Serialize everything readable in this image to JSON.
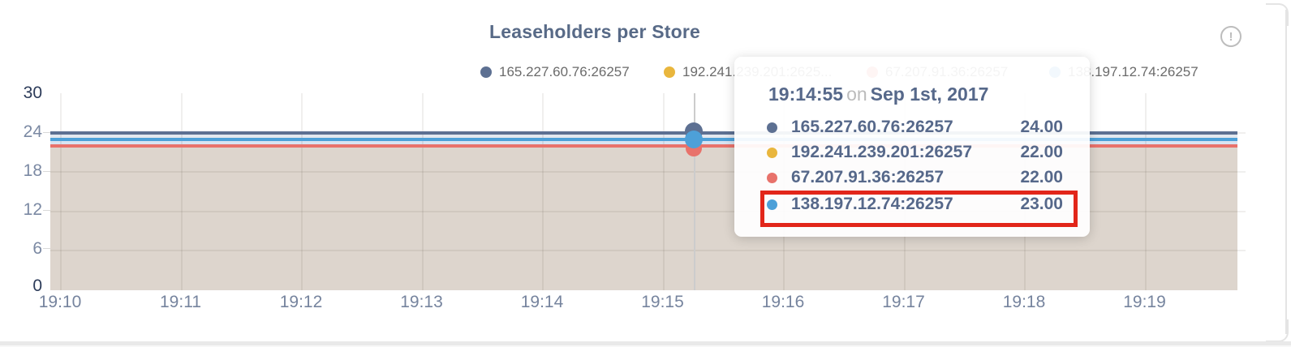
{
  "panel": {
    "title": "Leaseholders per Store",
    "info_icon": "!"
  },
  "colors": {
    "series_slate": "#5d7092",
    "series_yellow": "#e9b63d",
    "series_red": "#e8726b",
    "series_blue": "#4da0d8",
    "highlight_box": "#e2261a",
    "area_fill": "#ddd5cd",
    "band_upper": "#e3e8ef",
    "band_lower": "#d8e3f2",
    "title_text": "#586a87",
    "axis_text": "#76849e",
    "axis_text_dark": "#2c3b59",
    "legend_text": "#6b6b6b"
  },
  "legend": {
    "items": [
      {
        "label": "165.227.60.76:26257"
      },
      {
        "label": "192.241.239.201:2625..."
      },
      {
        "label": "67.207.91.36:26257"
      },
      {
        "label": "138.197.12.74:26257"
      }
    ]
  },
  "tooltip": {
    "time": "19:14:55",
    "connector": "on",
    "date": "Sep 1st, 2017",
    "rows": [
      {
        "label": "165.227.60.76:26257",
        "value": "24.00"
      },
      {
        "label": "192.241.239.201:26257",
        "value": "22.00"
      },
      {
        "label": "67.207.91.36:26257",
        "value": "22.00"
      },
      {
        "label": "138.197.12.74:26257",
        "value": "23.00"
      }
    ],
    "highlighted_row_label": "138.197.12.74:26257"
  },
  "chart_data": {
    "type": "area",
    "title": "Leaseholders per Store",
    "x": [
      "19:10",
      "19:11",
      "19:12",
      "19:13",
      "19:14",
      "19:15",
      "19:16",
      "19:17",
      "19:18",
      "19:19"
    ],
    "series": [
      {
        "name": "165.227.60.76:26257",
        "color": "#5d7092",
        "values": [
          24,
          24,
          24,
          24,
          24,
          24,
          24,
          24,
          24,
          24
        ]
      },
      {
        "name": "192.241.239.201:26257",
        "color": "#e9b63d",
        "values": [
          22,
          22,
          22,
          22,
          22,
          22,
          22,
          22,
          22,
          22
        ]
      },
      {
        "name": "67.207.91.36:26257",
        "color": "#e8726b",
        "values": [
          22,
          22,
          22,
          22,
          22,
          22,
          22,
          22,
          22,
          22
        ]
      },
      {
        "name": "138.197.12.74:26257",
        "color": "#4da0d8",
        "values": [
          23,
          23,
          23,
          23,
          23,
          23,
          23,
          23,
          23,
          23
        ]
      }
    ],
    "ylim": [
      0,
      30
    ],
    "yticks": [
      30,
      24,
      18,
      12,
      6,
      0
    ],
    "grid": true,
    "legend_position": "top",
    "hover_point": {
      "time": "19:14:55",
      "date": "Sep 1st, 2017",
      "values": {
        "165.227.60.76:26257": 24,
        "192.241.239.201:26257": 22,
        "67.207.91.36:26257": 22,
        "138.197.12.74:26257": 23
      }
    }
  }
}
